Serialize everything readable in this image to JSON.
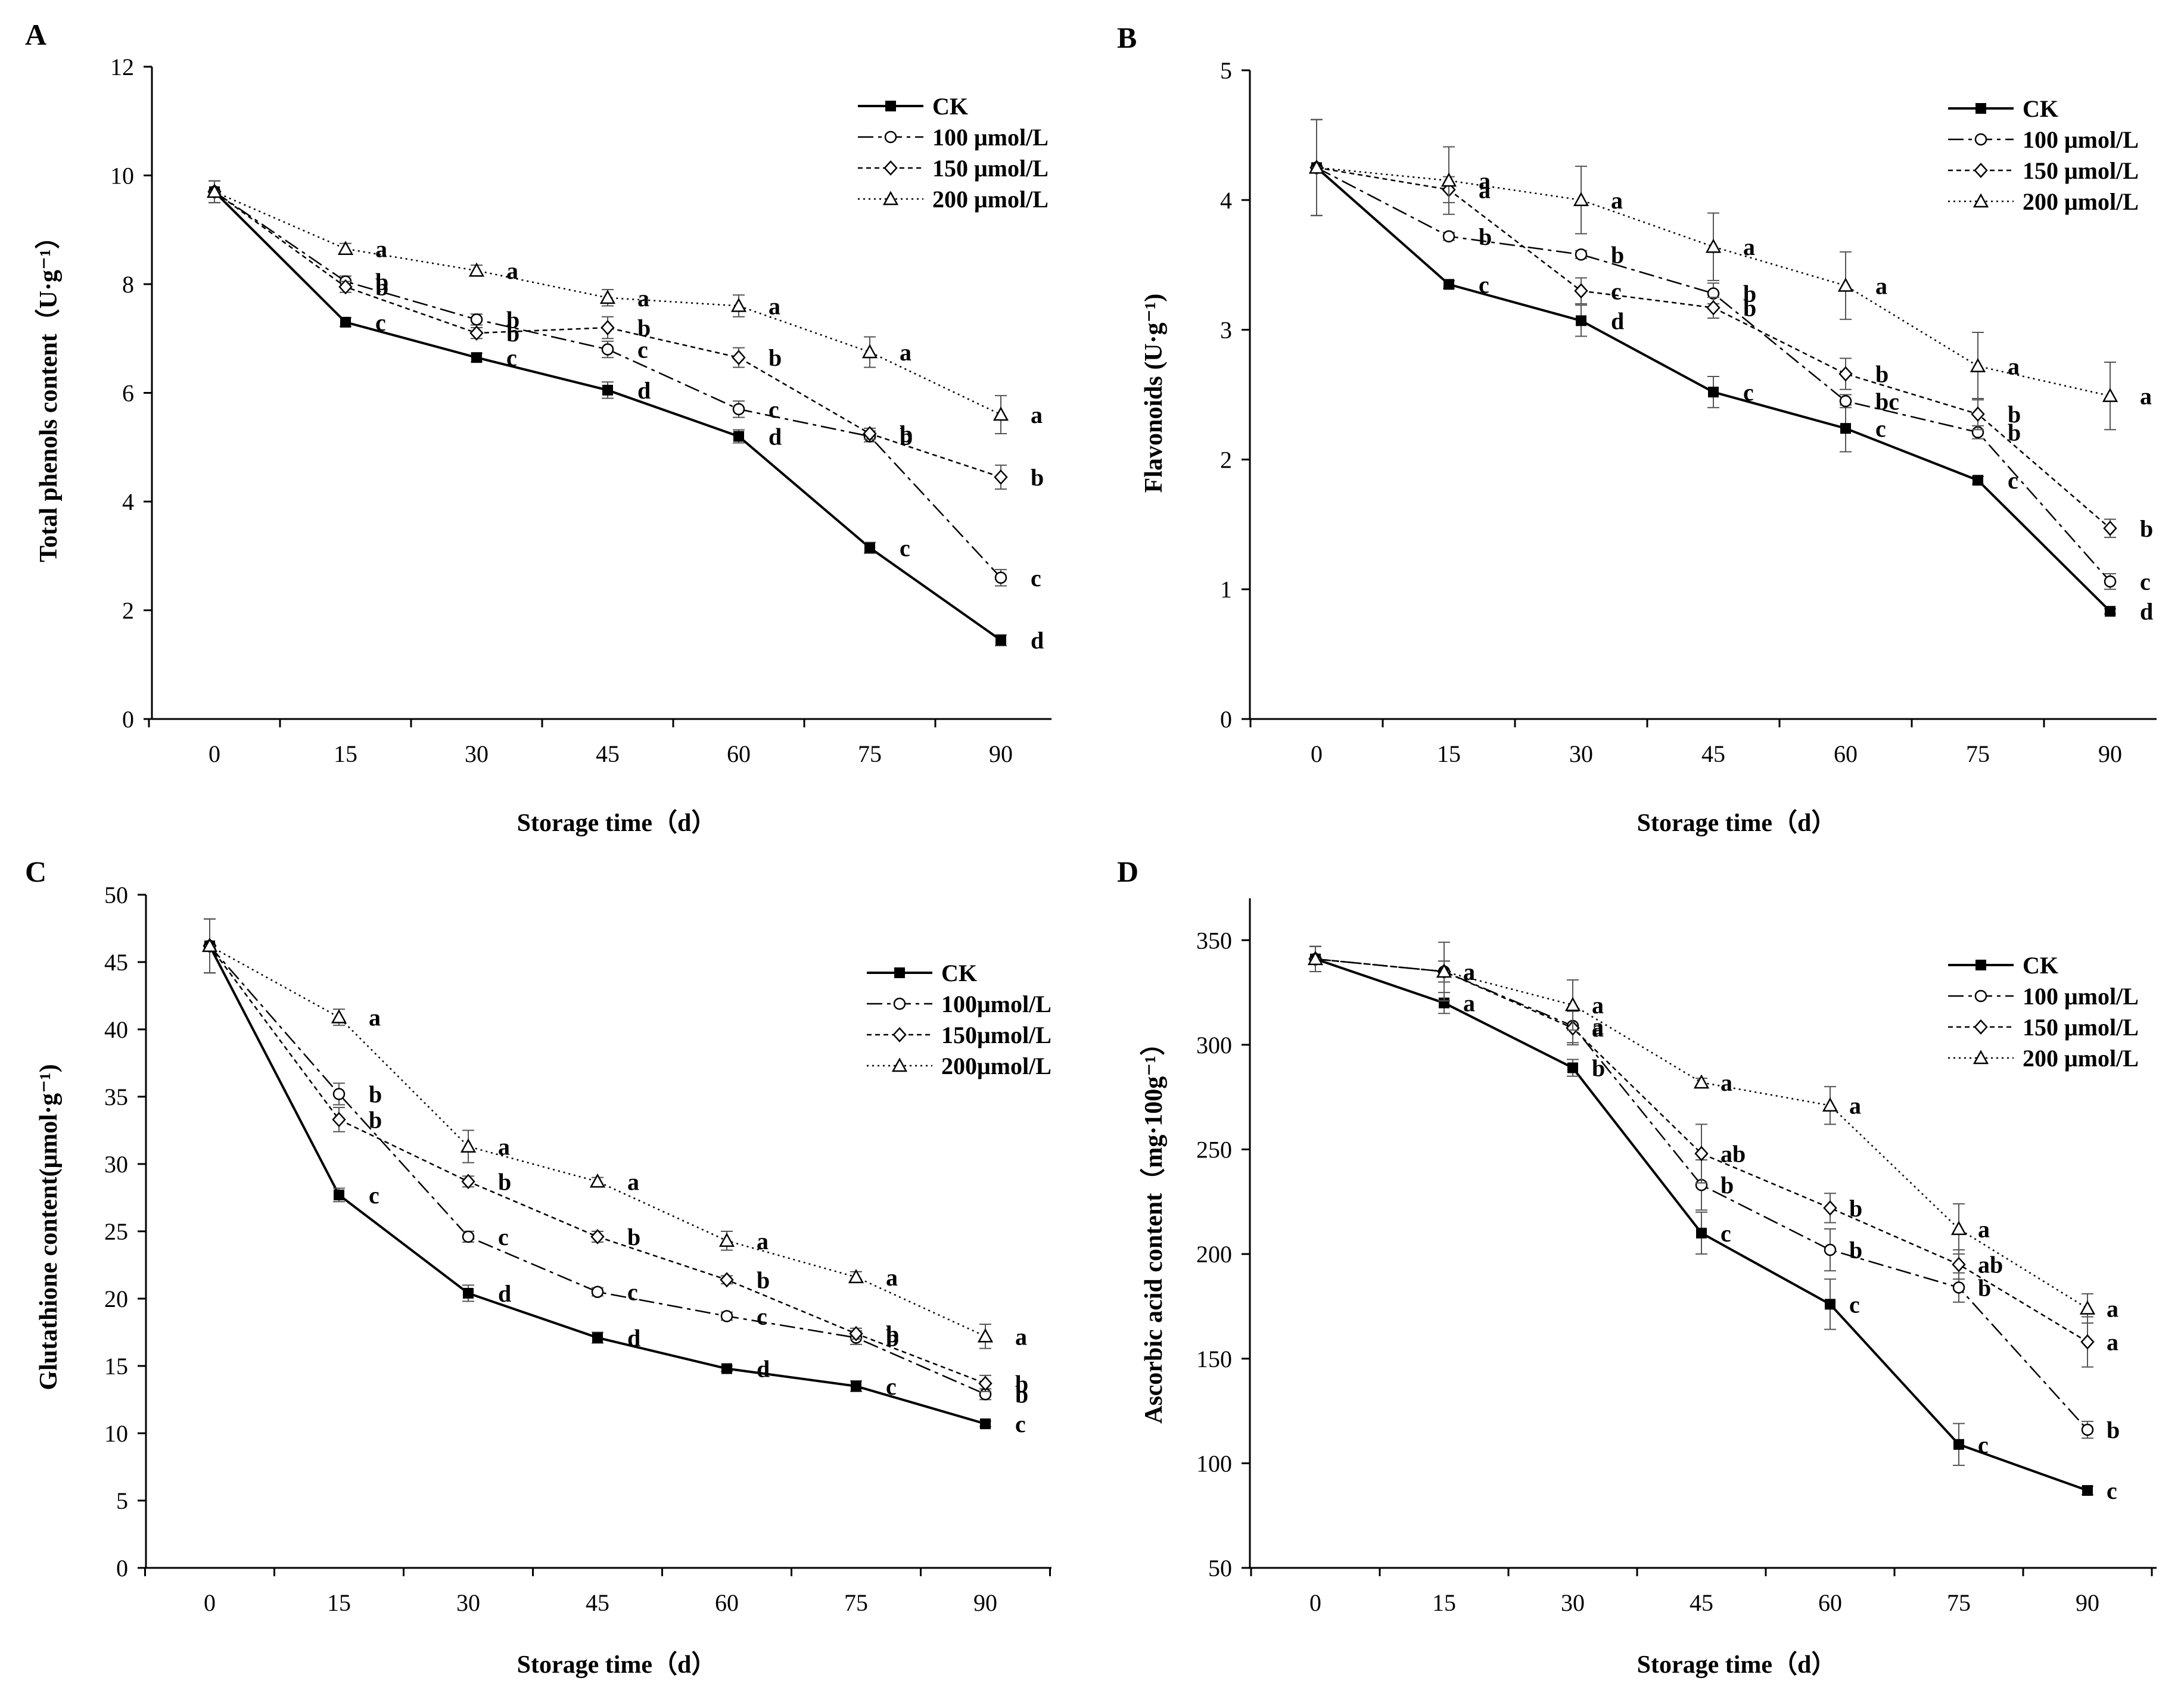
{
  "figure": {
    "panels": [
      {
        "letter": "A",
        "chart_data": {
          "type": "line",
          "xlabel": "Storage time（d）",
          "ylabel": "Total phenols content（U·g⁻¹）",
          "x": [
            0,
            15,
            30,
            45,
            60,
            75,
            90
          ],
          "xlim": [
            0,
            90
          ],
          "ylim": [
            0,
            12
          ],
          "yticks": [
            0,
            2,
            4,
            6,
            8,
            10,
            12
          ],
          "legend_position": "top-right",
          "grid": false,
          "series": [
            {
              "name": "CK",
              "values": [
                9.7,
                7.3,
                6.65,
                6.05,
                5.2,
                3.15,
                1.45
              ],
              "errors": [
                0.2,
                0.08,
                0.08,
                0.15,
                0.12,
                0.1,
                0.1
              ],
              "labels": [
                "",
                "c",
                "c",
                "d",
                "d",
                "c",
                "d"
              ]
            },
            {
              "name": "100 μmol/L",
              "values": [
                9.7,
                8.05,
                7.35,
                6.8,
                5.7,
                5.2,
                2.6
              ],
              "errors": [
                0.2,
                0.1,
                0.1,
                0.15,
                0.15,
                0.1,
                0.15
              ],
              "labels": [
                "",
                "b",
                "b",
                "c",
                "c",
                "b",
                "c"
              ]
            },
            {
              "name": "150 μmol/L",
              "values": [
                9.7,
                7.95,
                7.1,
                7.2,
                6.65,
                5.25,
                4.45
              ],
              "errors": [
                0.2,
                0.1,
                0.1,
                0.2,
                0.18,
                0.1,
                0.22
              ],
              "labels": [
                "",
                "b",
                "b",
                "b",
                "b",
                "b",
                "b"
              ]
            },
            {
              "name": "200 μmol/L",
              "values": [
                9.7,
                8.65,
                8.25,
                7.75,
                7.6,
                6.75,
                5.6
              ],
              "errors": [
                0.2,
                0.1,
                0.1,
                0.15,
                0.2,
                0.28,
                0.35
              ],
              "labels": [
                "",
                "a",
                "a",
                "a",
                "a",
                "a",
                "a"
              ]
            }
          ]
        }
      },
      {
        "letter": "B",
        "chart_data": {
          "type": "line",
          "xlabel": "Storage time（d）",
          "ylabel": "Flavonoids (U·g⁻¹)",
          "x": [
            0,
            15,
            30,
            45,
            60,
            75,
            90
          ],
          "xlim": [
            0,
            90
          ],
          "ylim": [
            0,
            5
          ],
          "yticks": [
            0,
            1,
            2,
            3,
            4,
            5
          ],
          "legend_position": "top-right",
          "grid": false,
          "series": [
            {
              "name": "CK",
              "values": [
                4.25,
                3.35,
                3.07,
                2.52,
                2.24,
                1.84,
                0.83
              ],
              "errors": [
                0.37,
                0.03,
                0.12,
                0.12,
                0.18,
                0.03,
                0.02
              ],
              "labels": [
                "",
                "c",
                "d",
                "c",
                "c",
                "c",
                "d"
              ]
            },
            {
              "name": "100 μmol/L",
              "values": [
                4.25,
                3.72,
                3.58,
                3.28,
                2.45,
                2.21,
                1.06
              ],
              "errors": [
                0.37,
                0.03,
                0.03,
                0.08,
                0.05,
                0.05,
                0.06
              ],
              "labels": [
                "",
                "b",
                "b",
                "b",
                "bc",
                "b",
                "c"
              ]
            },
            {
              "name": "150 μmol/L",
              "values": [
                4.25,
                4.08,
                3.3,
                3.17,
                2.66,
                2.35,
                1.47
              ],
              "errors": [
                0.37,
                0.1,
                0.1,
                0.08,
                0.12,
                0.12,
                0.07
              ],
              "labels": [
                "",
                "a",
                "c",
                "b",
                "b",
                "b",
                "b"
              ]
            },
            {
              "name": "200 μmol/L",
              "values": [
                4.25,
                4.15,
                4.0,
                3.64,
                3.34,
                2.72,
                2.49
              ],
              "errors": [
                0.37,
                0.26,
                0.26,
                0.26,
                0.26,
                0.26,
                0.26
              ],
              "labels": [
                "",
                "a",
                "a",
                "a",
                "a",
                "a",
                "a"
              ]
            }
          ]
        }
      },
      {
        "letter": "C",
        "chart_data": {
          "type": "line",
          "xlabel": "Storage time（d）",
          "ylabel": "Glutathione content(μmol·g⁻¹)",
          "x": [
            0,
            15,
            30,
            45,
            60,
            75,
            90
          ],
          "xlim": [
            0,
            90
          ],
          "ylim": [
            0,
            50
          ],
          "yticks": [
            0,
            5,
            10,
            15,
            20,
            25,
            30,
            35,
            40,
            45,
            50
          ],
          "legend_position": "top-right",
          "grid": false,
          "series": [
            {
              "name": "CK",
              "values": [
                46.2,
                27.7,
                20.4,
                17.1,
                14.8,
                13.5,
                10.7
              ],
              "errors": [
                2.0,
                0.5,
                0.6,
                0.4,
                0.2,
                0.4,
                0.2
              ],
              "labels": [
                "",
                "c",
                "d",
                "d",
                "d",
                "c",
                "c"
              ]
            },
            {
              "name": "100μmol/L",
              "values": [
                46.2,
                35.2,
                24.6,
                20.5,
                18.7,
                17.1,
                12.9
              ],
              "errors": [
                2.0,
                0.8,
                0.4,
                0.3,
                0.3,
                0.5,
                0.4
              ],
              "labels": [
                "",
                "b",
                "c",
                "c",
                "c",
                "b",
                "b"
              ]
            },
            {
              "name": "150μmol/L",
              "values": [
                46.2,
                33.3,
                28.7,
                24.6,
                21.4,
                17.4,
                13.7
              ],
              "errors": [
                2.0,
                0.9,
                0.4,
                0.4,
                0.3,
                0.4,
                0.6
              ],
              "labels": [
                "",
                "b",
                "b",
                "b",
                "b",
                "b",
                "b"
              ]
            },
            {
              "name": "200μmol/L",
              "values": [
                46.2,
                40.9,
                31.3,
                28.7,
                24.3,
                21.6,
                17.2
              ],
              "errors": [
                2.0,
                0.6,
                1.2,
                0.3,
                0.7,
                0.4,
                0.9
              ],
              "labels": [
                "",
                "a",
                "a",
                "a",
                "a",
                "a",
                "a"
              ]
            }
          ]
        }
      },
      {
        "letter": "D",
        "chart_data": {
          "type": "line",
          "xlabel": "Storage time（d）",
          "ylabel": "Ascorbic acid content（mg·100g⁻¹）",
          "x": [
            0,
            15,
            30,
            45,
            60,
            75,
            90
          ],
          "xlim": [
            0,
            90
          ],
          "ylim": [
            50,
            370
          ],
          "yticks": [
            50,
            100,
            150,
            200,
            250,
            300,
            350
          ],
          "legend_position": "top-right",
          "grid": false,
          "series": [
            {
              "name": "CK",
              "values": [
                341,
                320,
                289,
                210,
                176,
                109,
                87
              ],
              "errors": [
                6,
                5,
                4,
                10,
                12,
                10,
                2
              ],
              "labels": [
                "",
                "a",
                "b",
                "c",
                "c",
                "c",
                "c"
              ]
            },
            {
              "name": "100 μmol/L",
              "values": [
                341,
                335,
                309,
                233,
                202,
                184,
                116
              ],
              "errors": [
                6,
                5,
                8,
                12,
                10,
                7,
                4
              ],
              "labels": [
                "",
                "a",
                "a",
                "b",
                "b",
                "b",
                "b"
              ]
            },
            {
              "name": "150 μmol/L",
              "values": [
                341,
                335,
                308,
                248,
                222,
                195,
                158
              ],
              "errors": [
                6,
                5,
                8,
                14,
                7,
                7,
                12
              ],
              "labels": [
                "",
                "a",
                "a",
                "ab",
                "b",
                "ab",
                "a"
              ]
            },
            {
              "name": "200 μmol/L",
              "values": [
                341,
                335,
                319,
                282,
                271,
                212,
                174
              ],
              "errors": [
                6,
                14,
                12,
                2,
                9,
                12,
                7
              ],
              "labels": [
                "",
                "a",
                "a",
                "a",
                "a",
                "a",
                "a"
              ]
            }
          ]
        }
      }
    ]
  }
}
